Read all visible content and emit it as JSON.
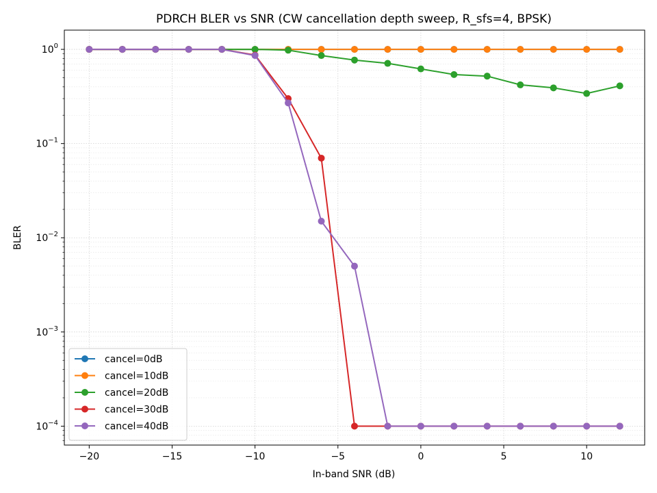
{
  "chart_data": {
    "type": "line",
    "title": "PDRCH BLER vs SNR (CW cancellation depth sweep, R_sfs=4, BPSK)",
    "xlabel": "In-band SNR (dB)",
    "ylabel": "BLER",
    "yscale": "log",
    "xlim": [
      -21.5,
      13.5
    ],
    "ylim": [
      6.3e-05,
      1.6
    ],
    "xticks": [
      -20,
      -15,
      -10,
      -5,
      0,
      5,
      10
    ],
    "xtick_labels": [
      "−20",
      "−15",
      "−10",
      "−5",
      "0",
      "5",
      "10"
    ],
    "yticks": [
      0.0001,
      0.001,
      0.01,
      0.1,
      1
    ],
    "ytick_labels": [
      {
        "base": "10",
        "exp": "−4"
      },
      {
        "base": "10",
        "exp": "−3"
      },
      {
        "base": "10",
        "exp": "−2"
      },
      {
        "base": "10",
        "exp": "−1"
      },
      {
        "base": "10",
        "exp": "0"
      }
    ],
    "grid": true,
    "legend_position": "lower-left",
    "x": [
      -20,
      -18,
      -16,
      -14,
      -12,
      -10,
      -8,
      -6,
      -4,
      -2,
      0,
      2,
      4,
      6,
      8,
      10,
      12
    ],
    "series": [
      {
        "name": "cancel=0dB",
        "color": "#1f77b4",
        "values": [
          1,
          1,
          1,
          1,
          1,
          1,
          1,
          1,
          1,
          1,
          1,
          1,
          1,
          1,
          1,
          1,
          1
        ]
      },
      {
        "name": "cancel=10dB",
        "color": "#ff7f0e",
        "values": [
          1,
          1,
          1,
          1,
          1,
          1,
          1,
          1,
          1,
          1,
          1,
          1,
          1,
          1,
          1,
          1,
          1
        ]
      },
      {
        "name": "cancel=20dB",
        "color": "#2ca02c",
        "values": [
          1,
          1,
          1,
          1,
          1,
          1,
          0.98,
          0.86,
          0.77,
          0.71,
          0.62,
          0.54,
          0.52,
          0.42,
          0.39,
          0.34,
          0.41
        ]
      },
      {
        "name": "cancel=30dB",
        "color": "#d62728",
        "values": [
          1,
          1,
          1,
          1,
          1,
          0.87,
          0.3,
          0.07,
          0.0001,
          0.0001,
          0.0001,
          0.0001,
          0.0001,
          0.0001,
          0.0001,
          0.0001,
          0.0001
        ]
      },
      {
        "name": "cancel=40dB",
        "color": "#9467bd",
        "values": [
          1,
          1,
          1,
          1,
          1,
          0.86,
          0.27,
          0.015,
          0.005,
          0.0001,
          0.0001,
          0.0001,
          0.0001,
          0.0001,
          0.0001,
          0.0001,
          0.0001
        ]
      }
    ]
  }
}
